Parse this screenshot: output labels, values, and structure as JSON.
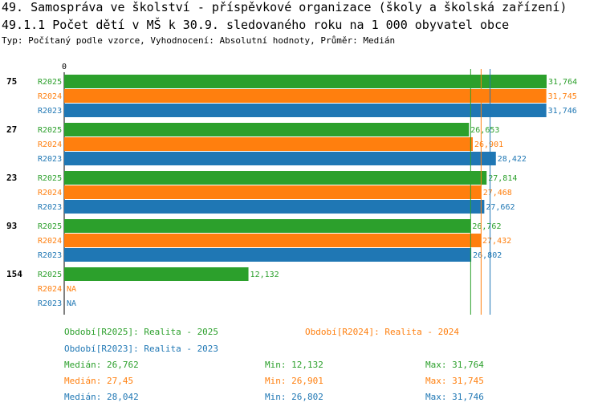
{
  "header": {
    "title": "49. Samospráva ve školství - příspěvkové organizace (školy a školská zařízení)",
    "subtitle": "49.1.1 Počet dětí v MŠ k 30.9. sledovaného roku na 1 000 obyvatel obce",
    "meta": "Typ: Počítaný podle vzorce, Vyhodnocení: Absolutní hodnoty, Průměr: Medián"
  },
  "colors": {
    "R2025": "#2ca02c",
    "R2024": "#ff7f0e",
    "R2023": "#1f77b4"
  },
  "chart_data": {
    "type": "bar",
    "orientation": "horizontal",
    "xmin": 0,
    "x_tick_label": "0",
    "value_scale": "0 to 31.764 spans bar area",
    "categories": [
      "75",
      "27",
      "23",
      "93",
      "154"
    ],
    "series": [
      {
        "name": "R2025",
        "values": [
          31.764,
          26.653,
          27.814,
          26.762,
          12.132
        ],
        "labels": [
          "31,764",
          "26,653",
          "27,814",
          "26,762",
          "12,132"
        ]
      },
      {
        "name": "R2024",
        "values": [
          31.745,
          26.901,
          27.468,
          27.432,
          null
        ],
        "labels": [
          "31,745",
          "26,901",
          "27,468",
          "27,432",
          "NA"
        ]
      },
      {
        "name": "R2023",
        "values": [
          31.746,
          28.422,
          27.662,
          26.802,
          null
        ],
        "labels": [
          "31,746",
          "28,422",
          "27,662",
          "26,802",
          "NA"
        ]
      }
    ],
    "median_lines": [
      26.762,
      27.45,
      28.042
    ]
  },
  "legend": {
    "items": [
      {
        "series": "R2025",
        "label": "Období[R2025]: Realita - 2025"
      },
      {
        "series": "R2024",
        "label": "Období[R2024]: Realita - 2024"
      },
      {
        "series": "R2023",
        "label": "Období[R2023]: Realita - 2023"
      }
    ],
    "stats": [
      {
        "series": "R2025",
        "median": "Medián: 26,762",
        "min": "Min: 12,132",
        "max": "Max: 31,764"
      },
      {
        "series": "R2024",
        "median": "Medián: 27,45",
        "min": "Min: 26,901",
        "max": "Max: 31,745"
      },
      {
        "series": "R2023",
        "median": "Medián: 28,042",
        "min": "Min: 26,802",
        "max": "Max: 31,746"
      }
    ]
  }
}
